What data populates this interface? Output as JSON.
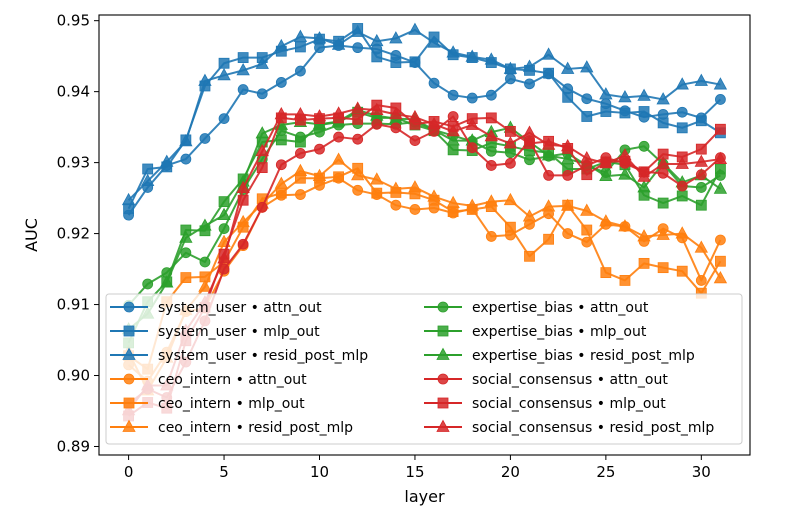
{
  "chart_data": {
    "type": "line",
    "xlabel": "layer",
    "ylabel": "AUC",
    "xlim": [
      -1.55,
      32.55
    ],
    "ylim": [
      0.8888,
      0.9508
    ],
    "xticks": [
      0,
      5,
      10,
      15,
      20,
      25,
      30
    ],
    "yticks": [
      0.89,
      0.9,
      0.91,
      0.92,
      0.93,
      0.94,
      0.95
    ],
    "ytick_labels": [
      "0.89",
      "0.90",
      "0.91",
      "0.92",
      "0.93",
      "0.94",
      "0.95"
    ],
    "legend_position": "lower-left",
    "x": [
      0,
      1,
      2,
      3,
      4,
      5,
      6,
      7,
      8,
      9,
      10,
      11,
      12,
      13,
      14,
      15,
      16,
      17,
      18,
      19,
      20,
      21,
      22,
      23,
      24,
      25,
      26,
      27,
      28,
      29,
      30,
      31
    ],
    "series": [
      {
        "name": "system_user • attn_out",
        "color": "#1f77b4",
        "marker": "circle",
        "values": [
          0.9226,
          0.9265,
          0.9296,
          0.9305,
          0.9334,
          0.9362,
          0.9403,
          0.9397,
          0.9413,
          0.9429,
          0.9462,
          0.9465,
          0.9462,
          0.946,
          0.9451,
          0.9441,
          0.9412,
          0.9395,
          0.9391,
          0.9395,
          0.9418,
          0.9411,
          0.9425,
          0.9404,
          0.939,
          0.9383,
          0.9373,
          0.9364,
          0.9368,
          0.9371,
          0.9363,
          0.9389
        ]
      },
      {
        "name": "system_user • mlp_out",
        "color": "#1f77b4",
        "marker": "square",
        "values": [
          0.9235,
          0.9291,
          0.9294,
          0.9332,
          0.9408,
          0.944,
          0.9448,
          0.9448,
          0.9457,
          0.9463,
          0.9474,
          0.9471,
          0.9489,
          0.9449,
          0.9441,
          0.9442,
          0.9477,
          0.9452,
          0.9448,
          0.9441,
          0.9432,
          0.943,
          0.9426,
          0.9392,
          0.9365,
          0.9372,
          0.937,
          0.9372,
          0.9356,
          0.9349,
          0.9359,
          0.9342
        ]
      },
      {
        "name": "system_user • resid_post_mlp",
        "color": "#1f77b4",
        "marker": "triangle",
        "values": [
          0.9247,
          0.9274,
          0.9301,
          0.933,
          0.9415,
          0.9423,
          0.943,
          0.9439,
          0.9464,
          0.9477,
          0.9475,
          0.9466,
          0.9484,
          0.9471,
          0.9475,
          0.9487,
          0.9469,
          0.9455,
          0.9449,
          0.9445,
          0.9432,
          0.9435,
          0.9452,
          0.9432,
          0.9434,
          0.9396,
          0.9392,
          0.9394,
          0.9389,
          0.941,
          0.9415,
          0.941
        ]
      },
      {
        "name": "ceo_intern • attn_out",
        "color": "#ff7f0e",
        "marker": "circle",
        "values": [
          0.9015,
          0.8992,
          0.9033,
          0.909,
          0.9095,
          0.9147,
          0.9183,
          0.9237,
          0.9254,
          0.9255,
          0.9268,
          0.9278,
          0.9261,
          0.9255,
          0.924,
          0.9234,
          0.9236,
          0.9229,
          0.9235,
          0.9196,
          0.9198,
          0.9213,
          0.9228,
          0.92,
          0.9188,
          0.9213,
          0.921,
          0.9189,
          0.9207,
          0.9194,
          0.9134,
          0.9191
        ]
      },
      {
        "name": "ceo_intern • mlp_out",
        "color": "#ff7f0e",
        "marker": "square",
        "values": [
          0.9028,
          0.9009,
          0.9104,
          0.9138,
          0.9139,
          0.916,
          0.9209,
          0.9249,
          0.9257,
          0.9278,
          0.9278,
          0.928,
          0.9292,
          0.9257,
          0.9258,
          0.9256,
          0.9247,
          0.9231,
          0.9234,
          0.9238,
          0.9209,
          0.9168,
          0.9192,
          0.924,
          0.9205,
          0.9145,
          0.9134,
          0.9158,
          0.9152,
          0.9147,
          0.9116,
          0.9161
        ]
      },
      {
        "name": "ceo_intern • resid_post_mlp",
        "color": "#ff7f0e",
        "marker": "triangle",
        "values": [
          0.9033,
          0.8979,
          0.9025,
          0.9092,
          0.9125,
          0.9188,
          0.9216,
          0.9242,
          0.927,
          0.9288,
          0.9281,
          0.9304,
          0.9282,
          0.9276,
          0.9263,
          0.9265,
          0.9252,
          0.9243,
          0.9239,
          0.9245,
          0.9247,
          0.9224,
          0.9238,
          0.9239,
          0.9232,
          0.9217,
          0.921,
          0.9196,
          0.9198,
          0.92,
          0.918,
          0.9137
        ]
      },
      {
        "name": "expertise_bias • attn_out",
        "color": "#2ca02c",
        "marker": "circle",
        "values": [
          0.9099,
          0.9129,
          0.9145,
          0.9173,
          0.916,
          0.9207,
          0.9262,
          0.9305,
          0.9345,
          0.9336,
          0.9343,
          0.9353,
          0.9355,
          0.9355,
          0.9354,
          0.9357,
          0.9346,
          0.9338,
          0.933,
          0.9316,
          0.9314,
          0.9304,
          0.9309,
          0.9313,
          0.9296,
          0.9286,
          0.9318,
          0.9323,
          0.9298,
          0.9267,
          0.9265,
          0.9282
        ]
      },
      {
        "name": "expertise_bias • mlp_out",
        "color": "#2ca02c",
        "marker": "square",
        "values": [
          0.9046,
          0.9104,
          0.9132,
          0.9205,
          0.9204,
          0.9245,
          0.9277,
          0.9329,
          0.9332,
          0.9329,
          0.9353,
          0.9357,
          0.9371,
          0.9363,
          0.9363,
          0.9353,
          0.9345,
          0.9318,
          0.9317,
          0.9328,
          0.9323,
          0.9317,
          0.9314,
          0.9291,
          0.9291,
          0.9301,
          0.9297,
          0.9254,
          0.9243,
          0.9253,
          0.924,
          0.9291
        ]
      },
      {
        "name": "expertise_bias • resid_post_mlp",
        "color": "#2ca02c",
        "marker": "triangle",
        "values": [
          0.9065,
          0.9087,
          0.9131,
          0.9194,
          0.9211,
          0.9226,
          0.9273,
          0.9341,
          0.9353,
          0.9357,
          0.9354,
          0.9358,
          0.9374,
          0.9366,
          0.9362,
          0.9361,
          0.9346,
          0.9331,
          0.9331,
          0.9343,
          0.9349,
          0.9329,
          0.931,
          0.9305,
          0.9298,
          0.9281,
          0.9283,
          0.9265,
          0.9299,
          0.9272,
          0.9282,
          0.9263
        ]
      },
      {
        "name": "social_consensus • attn_out",
        "color": "#d62728",
        "marker": "circle",
        "values": [
          0.896,
          0.8981,
          0.8969,
          0.9019,
          0.9077,
          0.915,
          0.9185,
          0.9237,
          0.9297,
          0.9313,
          0.9319,
          0.9336,
          0.9333,
          0.9354,
          0.9349,
          0.9331,
          0.9344,
          0.9365,
          0.9321,
          0.9296,
          0.9299,
          0.9331,
          0.9282,
          0.9282,
          0.9296,
          0.9307,
          0.9299,
          0.9287,
          0.9285,
          0.9267,
          0.9283,
          0.9307
        ]
      },
      {
        "name": "social_consensus • mlp_out",
        "color": "#d62728",
        "marker": "square",
        "values": [
          0.8943,
          0.8962,
          0.8954,
          0.9049,
          0.9096,
          0.9171,
          0.9247,
          0.9293,
          0.9363,
          0.936,
          0.9362,
          0.9363,
          0.9361,
          0.9381,
          0.9377,
          0.9354,
          0.9358,
          0.9351,
          0.9362,
          0.9363,
          0.9344,
          0.9327,
          0.933,
          0.932,
          0.9283,
          0.9301,
          0.9302,
          0.9287,
          0.9312,
          0.9308,
          0.9319,
          0.9347
        ]
      },
      {
        "name": "social_consensus • resid_post_mlp",
        "color": "#d62728",
        "marker": "triangle",
        "values": [
          0.8951,
          0.8986,
          0.8986,
          0.9063,
          0.9103,
          0.9165,
          0.9264,
          0.9316,
          0.9368,
          0.9368,
          0.9365,
          0.9369,
          0.9376,
          0.9374,
          0.9368,
          0.9364,
          0.9354,
          0.9344,
          0.9353,
          0.9337,
          0.9327,
          0.9342,
          0.9325,
          0.9323,
          0.9306,
          0.9299,
          0.931,
          0.928,
          0.9298,
          0.9298,
          0.9301,
          0.9305
        ]
      }
    ]
  }
}
